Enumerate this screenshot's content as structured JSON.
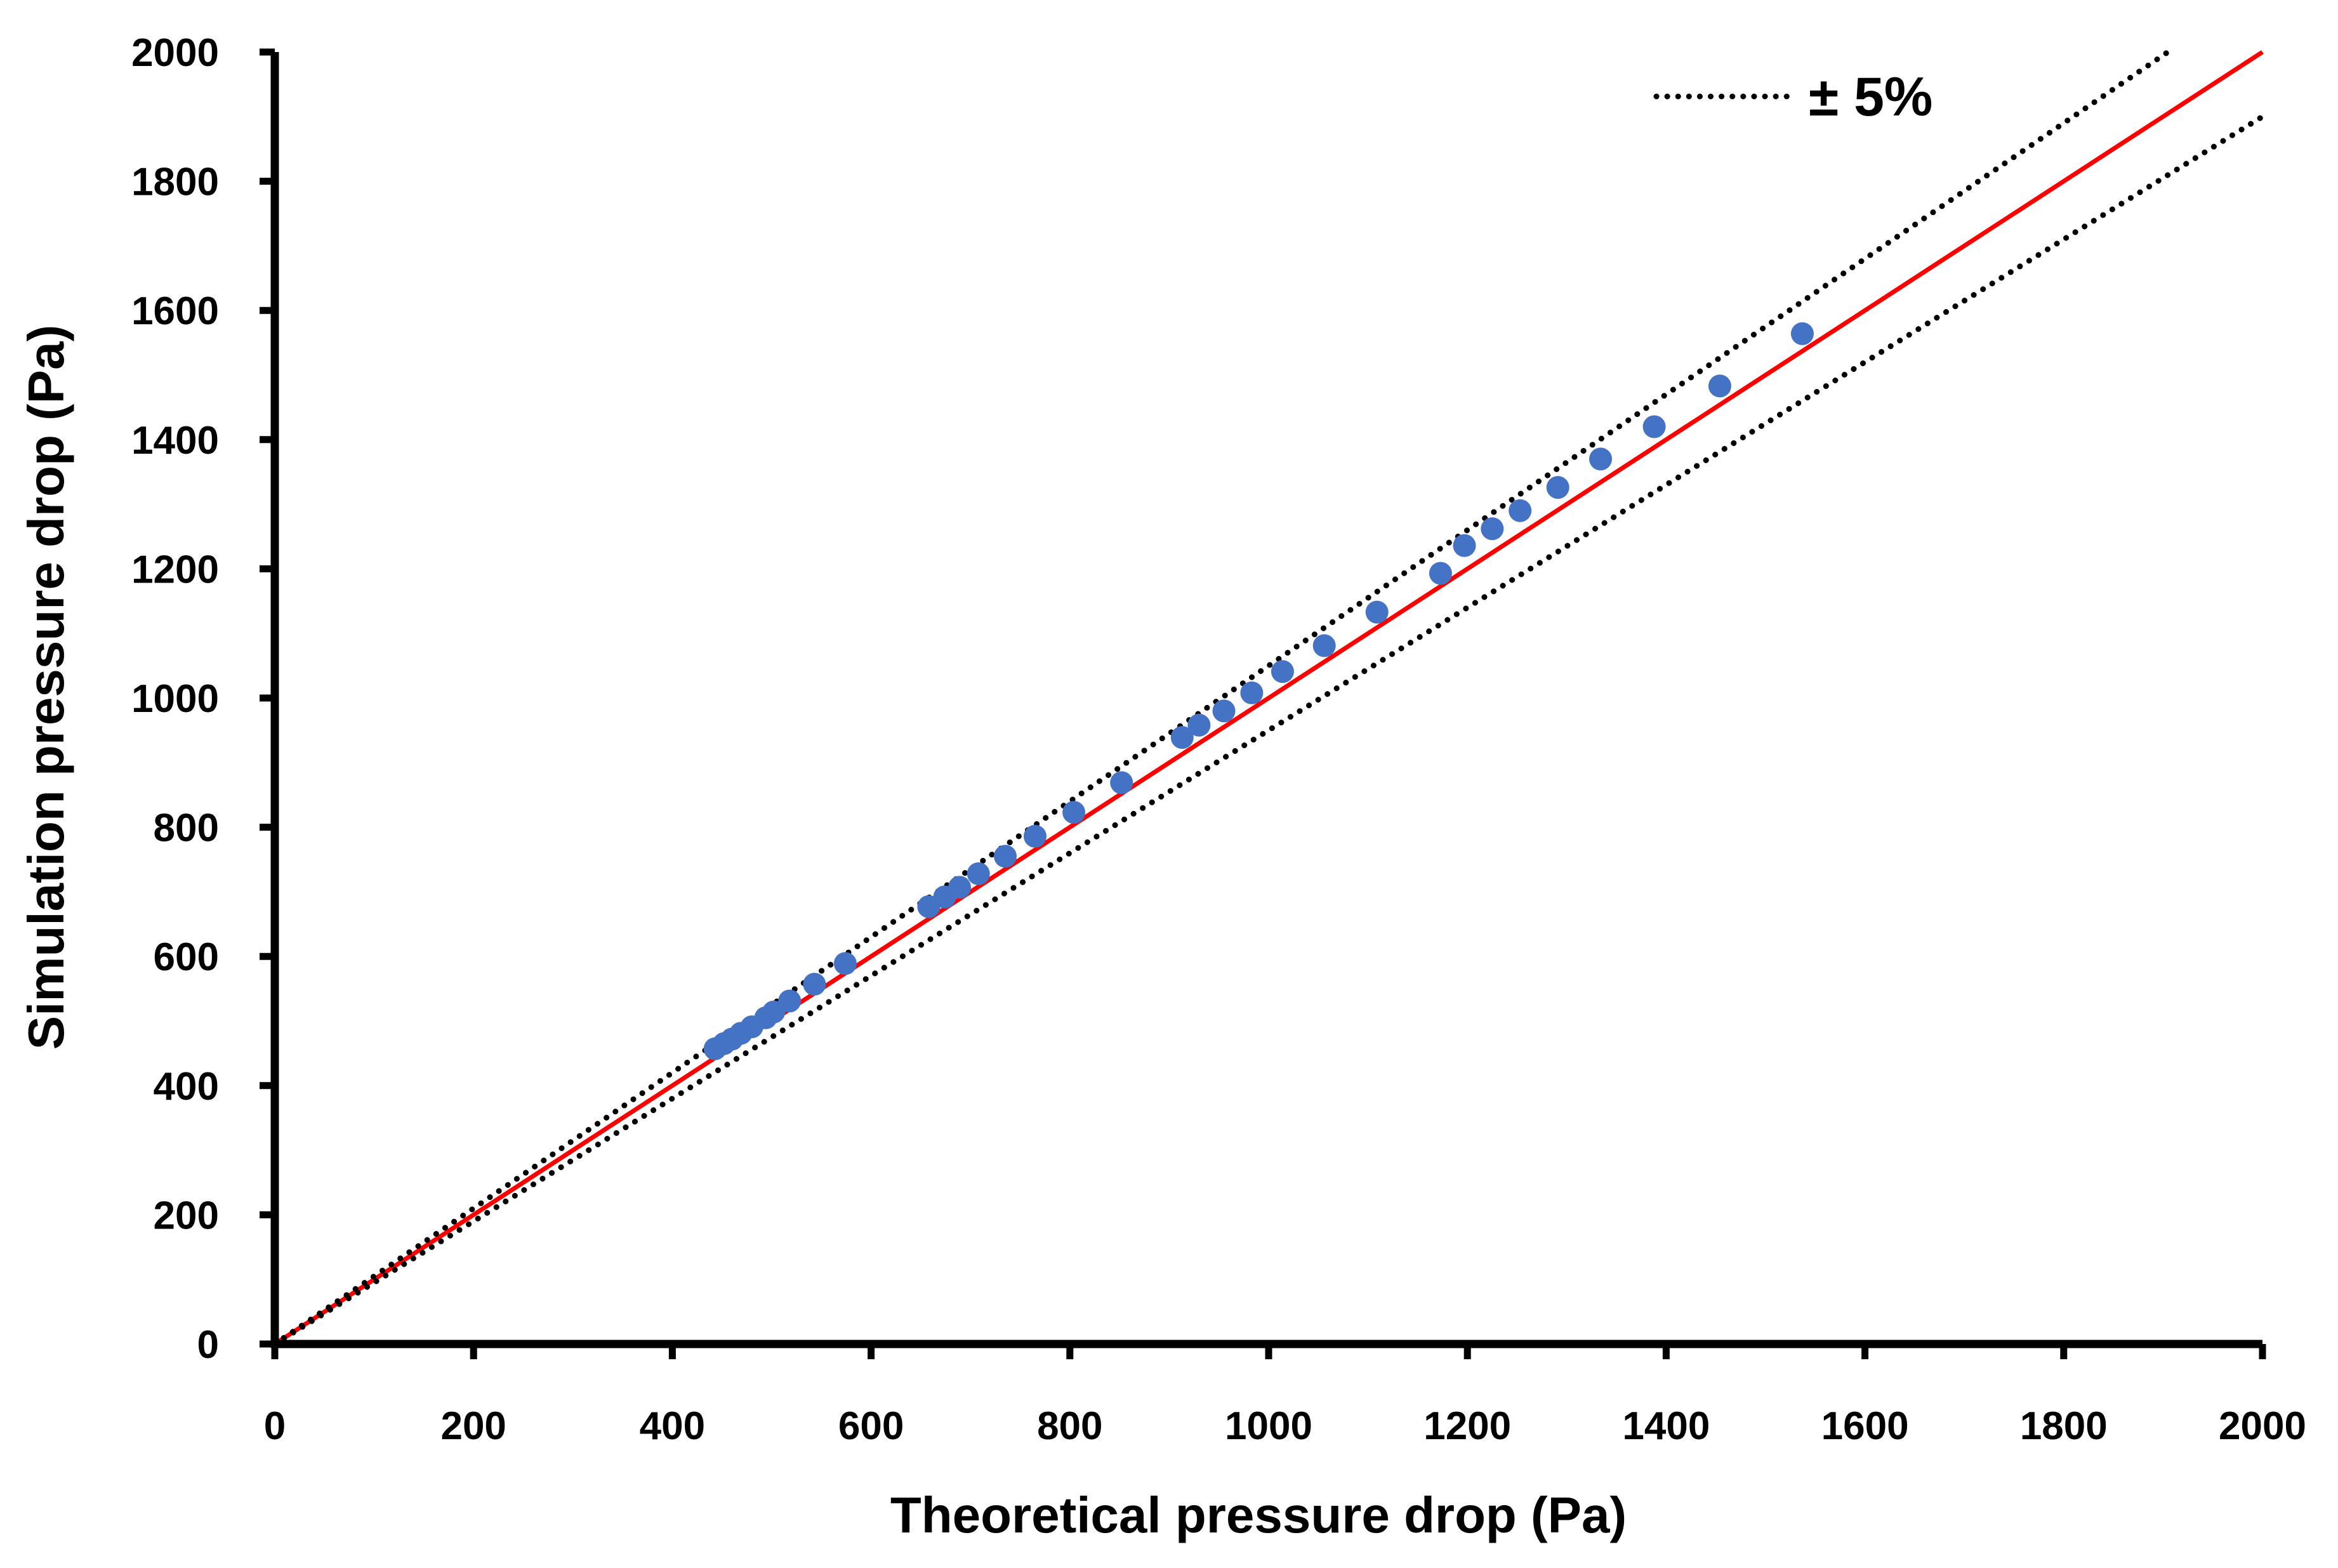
{
  "chart_data": {
    "type": "scatter",
    "xlabel": "Theoretical pressure drop (Pa)",
    "ylabel": "Simulation pressure drop (Pa)",
    "xlim": [
      0,
      2000
    ],
    "ylim": [
      0,
      2000
    ],
    "xticks": [
      0,
      200,
      400,
      600,
      800,
      1000,
      1200,
      1400,
      1600,
      1800,
      2000
    ],
    "yticks": [
      0,
      200,
      400,
      600,
      800,
      1000,
      1200,
      1400,
      1600,
      1800,
      2000
    ],
    "xtick_labels": [
      "0",
      "200",
      "400",
      "600",
      "800",
      "1000",
      "1200",
      "1400",
      "1600",
      "1800",
      "2000"
    ],
    "ytick_labels": [
      "0",
      "200",
      "400",
      "600",
      "800",
      "1000",
      "1200",
      "1400",
      "1600",
      "1800",
      "2000"
    ],
    "grid": false,
    "legend": {
      "position": "top-right",
      "label": "± 5%"
    },
    "series": [
      {
        "name": "Simulation",
        "kind": "scatter",
        "color": "#4472C4",
        "points": [
          [
            443,
            457
          ],
          [
            452,
            465
          ],
          [
            460,
            472
          ],
          [
            469,
            481
          ],
          [
            480,
            491
          ],
          [
            494,
            505
          ],
          [
            502,
            514
          ],
          [
            518,
            531
          ],
          [
            543,
            557
          ],
          [
            574,
            589
          ],
          [
            658,
            677
          ],
          [
            674,
            692
          ],
          [
            689,
            707
          ],
          [
            708,
            728
          ],
          [
            735,
            755
          ],
          [
            765,
            786
          ],
          [
            804,
            823
          ],
          [
            852,
            869
          ],
          [
            913,
            939
          ],
          [
            930,
            958
          ],
          [
            955,
            980
          ],
          [
            983,
            1008
          ],
          [
            1014,
            1041
          ],
          [
            1056,
            1081
          ],
          [
            1109,
            1133
          ],
          [
            1173,
            1193
          ],
          [
            1197,
            1236
          ],
          [
            1225,
            1262
          ],
          [
            1253,
            1290
          ],
          [
            1291,
            1326
          ],
          [
            1334,
            1370
          ],
          [
            1388,
            1420
          ],
          [
            1454,
            1483
          ],
          [
            1537,
            1564
          ]
        ]
      },
      {
        "name": "y = x",
        "kind": "line",
        "color": "#FF0000",
        "slope": 1.0
      },
      {
        "name": "+5%",
        "kind": "dotted-line",
        "color": "#000000",
        "slope": 1.05
      },
      {
        "name": "-5%",
        "kind": "dotted-line",
        "color": "#000000",
        "slope": 0.95
      }
    ]
  }
}
